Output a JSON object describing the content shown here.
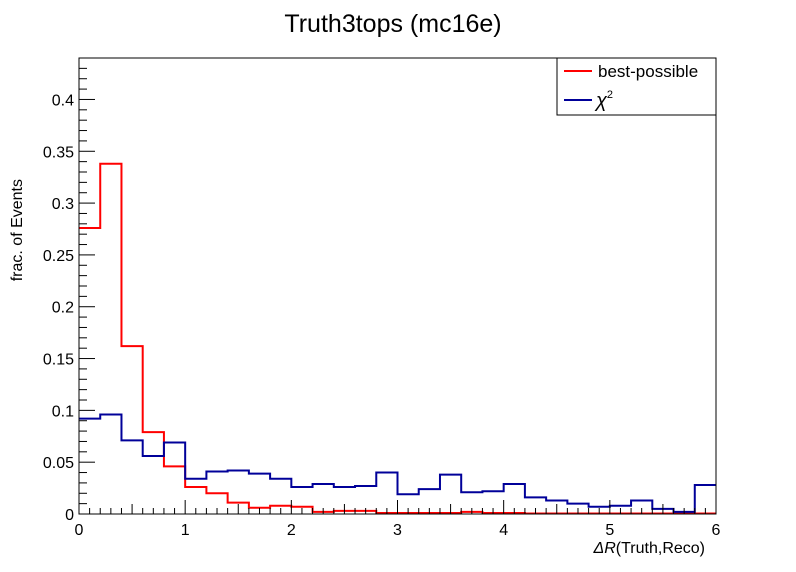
{
  "chart_data": {
    "type": "line",
    "style": "step-histogram",
    "title": "Truth3tops (mc16e)",
    "xlabel_italic": "ΔR",
    "xlabel_rest": "(Truth,Reco)",
    "ylabel": "frac. of Events",
    "xlim": [
      0,
      6
    ],
    "ylim": [
      0,
      0.44
    ],
    "x_ticks": [
      0,
      1,
      2,
      3,
      4,
      5,
      6
    ],
    "x_tick_labels": [
      "0",
      "1",
      "2",
      "3",
      "4",
      "5",
      "6"
    ],
    "y_ticks": [
      0,
      0.05,
      0.1,
      0.15,
      0.2,
      0.25,
      0.3,
      0.35,
      0.4
    ],
    "y_tick_labels": [
      "0",
      "0.05",
      "0.1",
      "0.15",
      "0.2",
      "0.25",
      "0.3",
      "0.35",
      "0.4"
    ],
    "bin_edges": [
      0,
      0.2,
      0.4,
      0.6,
      0.8,
      1.0,
      1.2,
      1.4,
      1.6,
      1.8,
      2.0,
      2.2,
      2.4,
      2.6,
      2.8,
      3.0,
      3.2,
      3.4,
      3.6,
      3.8,
      4.0,
      4.2,
      4.4,
      4.6,
      4.8,
      5.0,
      5.2,
      5.4,
      5.6,
      5.8,
      6.0
    ],
    "grid": false,
    "legend_position": "top-right",
    "series": [
      {
        "name": "best-possible",
        "color": "#ff0000",
        "values": [
          0.276,
          0.338,
          0.162,
          0.079,
          0.046,
          0.026,
          0.02,
          0.011,
          0.006,
          0.008,
          0.007,
          0.002,
          0.003,
          0.003,
          0.001,
          0.001,
          0.001,
          0.001,
          0.002,
          0.001,
          0.001,
          0.0005,
          0.0005,
          0.0005,
          0.0005,
          0.0005,
          0.0005,
          0.0005,
          0.0005,
          0.0005
        ]
      },
      {
        "name": "χ",
        "name_sup": "2",
        "color": "#000099",
        "values": [
          0.092,
          0.096,
          0.071,
          0.056,
          0.069,
          0.034,
          0.041,
          0.042,
          0.039,
          0.034,
          0.026,
          0.029,
          0.026,
          0.027,
          0.04,
          0.019,
          0.024,
          0.038,
          0.021,
          0.022,
          0.029,
          0.016,
          0.013,
          0.01,
          0.007,
          0.008,
          0.013,
          0.005,
          0.002,
          0.028
        ]
      }
    ]
  }
}
